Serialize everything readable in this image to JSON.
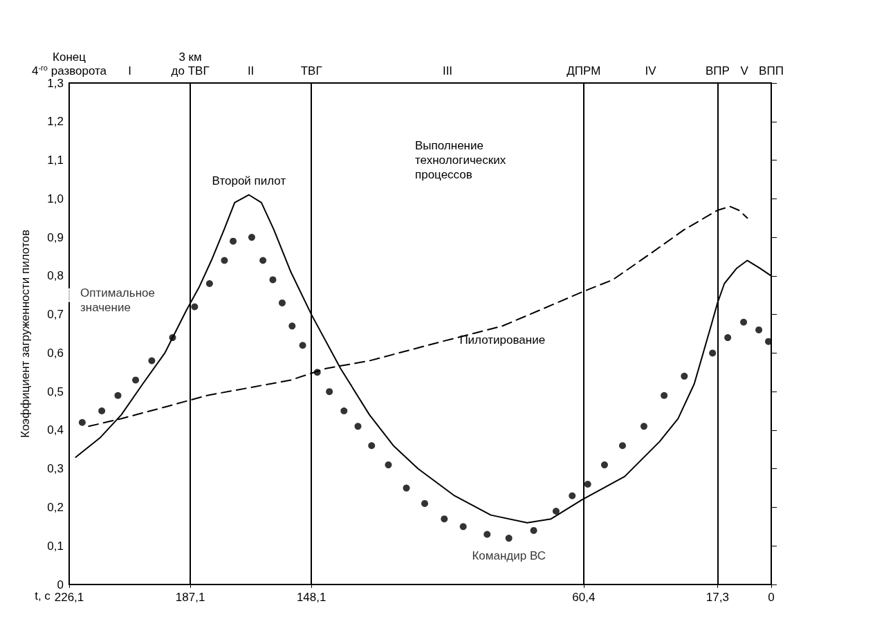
{
  "chart_data": {
    "type": "line",
    "xlabel": "t, c",
    "ylabel": "Коэффициент загруженности пилотов",
    "xlim": [
      226.1,
      0
    ],
    "xticks": [
      {
        "value": 226.1,
        "label": "226,1"
      },
      {
        "value": 187.1,
        "label": "187,1"
      },
      {
        "value": 148.1,
        "label": "148,1"
      },
      {
        "value": 60.4,
        "label": "60,4"
      },
      {
        "value": 17.3,
        "label": "17,3"
      },
      0
    ],
    "ylim": [
      0,
      1.3
    ],
    "yticks": [
      0,
      {
        "value": 0.1,
        "label": "0,1"
      },
      {
        "value": 0.2,
        "label": "0,2"
      },
      {
        "value": 0.3,
        "label": "0,3"
      },
      {
        "value": 0.4,
        "label": "0,4"
      },
      {
        "value": 0.5,
        "label": "0,5"
      },
      {
        "value": 0.6,
        "label": "0,6"
      },
      {
        "value": 0.7,
        "label": "0,7"
      },
      {
        "value": 0.8,
        "label": "0,8"
      },
      {
        "value": 0.9,
        "label": "0,9"
      },
      {
        "value": 1.0,
        "label": "1,0"
      },
      {
        "value": 1.1,
        "label": "1,1"
      },
      {
        "value": 1.2,
        "label": "1,2"
      },
      {
        "value": 1.3,
        "label": "1,3"
      }
    ],
    "grid": false,
    "legend": false,
    "series": [
      {
        "name": "Второй пилот",
        "color": "#000000",
        "line_style": "solid",
        "marker": "none",
        "x": [
          224.0,
          216.2,
          209.3,
          202.4,
          195.3,
          188.4,
          184.3,
          180.3,
          176.2,
          172.8,
          168.2,
          164.2,
          160.2,
          154.7,
          148.1,
          138.7,
          129.4,
          121.7,
          113.7,
          102.0,
          90.3,
          78.6,
          70.9,
          60.9,
          47.2,
          36.0,
          30.0,
          24.8,
          19.4,
          17.3,
          15.1,
          11.1,
          7.7,
          3.7,
          0
        ],
        "values": [
          0.33,
          0.38,
          0.44,
          0.52,
          0.6,
          0.71,
          0.77,
          0.84,
          0.92,
          0.99,
          1.01,
          0.99,
          0.92,
          0.81,
          0.7,
          0.56,
          0.44,
          0.36,
          0.3,
          0.23,
          0.18,
          0.16,
          0.17,
          0.22,
          0.28,
          0.37,
          0.43,
          0.52,
          0.67,
          0.73,
          0.78,
          0.82,
          0.84,
          0.82,
          0.8
        ]
      },
      {
        "name": "Командир ВС",
        "type": "scatter",
        "color": "#000000",
        "marker": "circle",
        "x": [
          221.9,
          215.6,
          210.4,
          204.7,
          199.5,
          192.8,
          185.7,
          180.9,
          176.1,
          173.3,
          167.3,
          163.7,
          160.5,
          157.5,
          154.3,
          150.9,
          146.2,
          142.3,
          137.6,
          133.1,
          128.7,
          123.3,
          117.5,
          111.6,
          105.3,
          99.2,
          91.5,
          84.5,
          76.5,
          69.3,
          64.1,
          59.1,
          53.7,
          47.9,
          41.0,
          34.5,
          28.0,
          18.9,
          14.0,
          8.9,
          4.0,
          0.9
        ],
        "values": [
          0.42,
          0.45,
          0.49,
          0.53,
          0.58,
          0.64,
          0.72,
          0.78,
          0.84,
          0.89,
          0.9,
          0.84,
          0.79,
          0.73,
          0.67,
          0.62,
          0.55,
          0.5,
          0.45,
          0.41,
          0.36,
          0.31,
          0.25,
          0.21,
          0.17,
          0.15,
          0.13,
          0.12,
          0.14,
          0.19,
          0.23,
          0.26,
          0.31,
          0.36,
          0.41,
          0.49,
          0.54,
          0.6,
          0.64,
          0.68,
          0.66,
          0.63
        ]
      },
      {
        "name": "Пилотирование",
        "color": "#000000",
        "line_style": "dashed",
        "marker": "none",
        "x": [
          219.8,
          209.3,
          195.3,
          181.7,
          168.2,
          154.7,
          143.4,
          129.4,
          106.0,
          86.6,
          74.9,
          60.4,
          51.0,
          38.5,
          28.0,
          17.3,
          13.3,
          10.4,
          7.7
        ],
        "values": [
          0.41,
          0.43,
          0.46,
          0.49,
          0.51,
          0.53,
          0.56,
          0.58,
          0.63,
          0.67,
          0.71,
          0.76,
          0.79,
          0.86,
          0.92,
          0.97,
          0.98,
          0.97,
          0.95
        ]
      }
    ],
    "ref_lines": [
      {
        "axis": "x",
        "value": 187.1,
        "label": "3 км\nдо ТВГ"
      },
      {
        "axis": "x",
        "value": 148.1,
        "label": "ТВГ"
      },
      {
        "axis": "x",
        "value": 60.4,
        "label": "ДПРМ"
      },
      {
        "axis": "x",
        "value": 17.3,
        "label": "ВПР"
      }
    ],
    "annotations": [
      {
        "text": "Оптимальное значение",
        "x": 226.1,
        "y": 0.75
      },
      "Конец\n4$^{-го}$ разворота",
      "ВПП",
      "I",
      "II",
      "III",
      "IV",
      "V",
      "Выполнение технологических процессов"
    ]
  }
}
